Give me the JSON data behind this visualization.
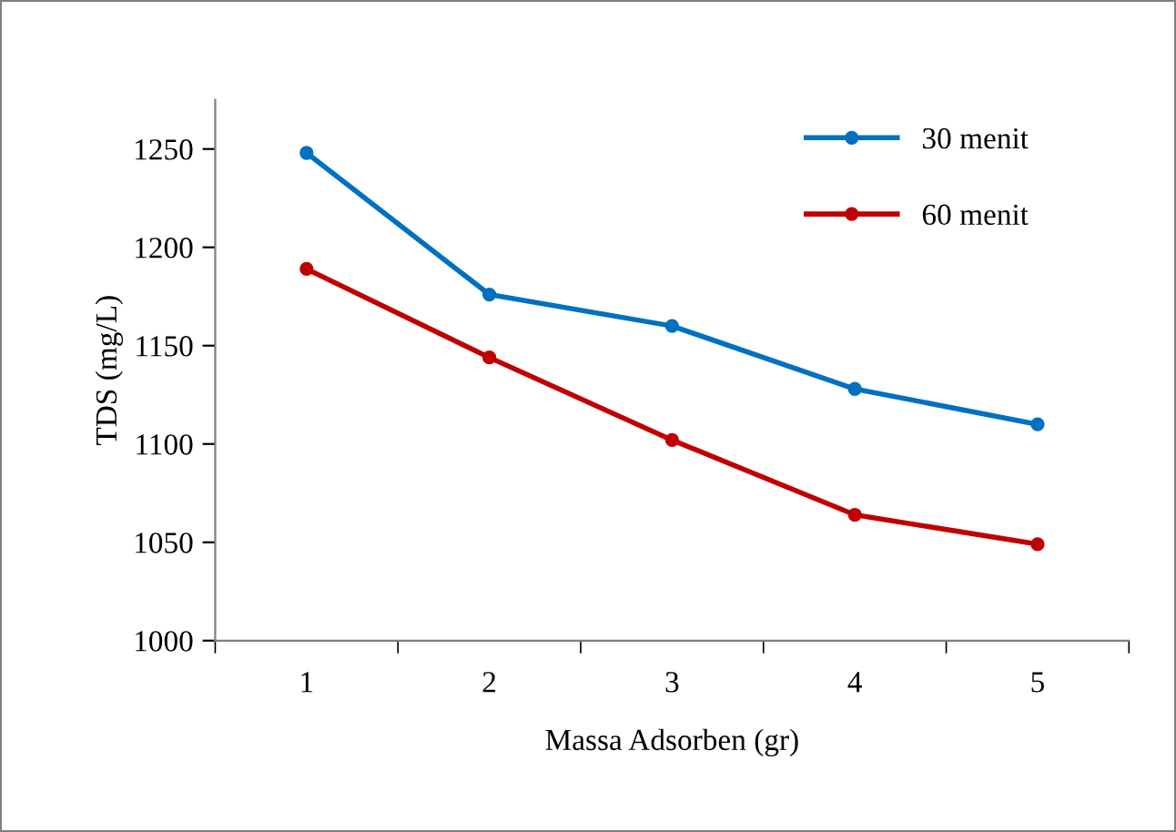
{
  "chart_data": {
    "type": "line",
    "xlabel": "Massa Adsorben (gr)",
    "ylabel": "TDS (mg/L)",
    "categories": [
      "1",
      "2",
      "3",
      "4",
      "5"
    ],
    "series": [
      {
        "name": "30 menit",
        "color": "#0070c0",
        "values": [
          1248,
          1176,
          1160,
          1128,
          1110
        ]
      },
      {
        "name": "60 menit",
        "color": "#c00000",
        "values": [
          1189,
          1144,
          1102,
          1064,
          1049
        ]
      }
    ],
    "ylim": [
      1000,
      1275
    ],
    "yticks": [
      1000,
      1050,
      1100,
      1150,
      1200,
      1250
    ],
    "grid": false,
    "legend": "top right",
    "marker": "circle",
    "line_style": "solid"
  }
}
